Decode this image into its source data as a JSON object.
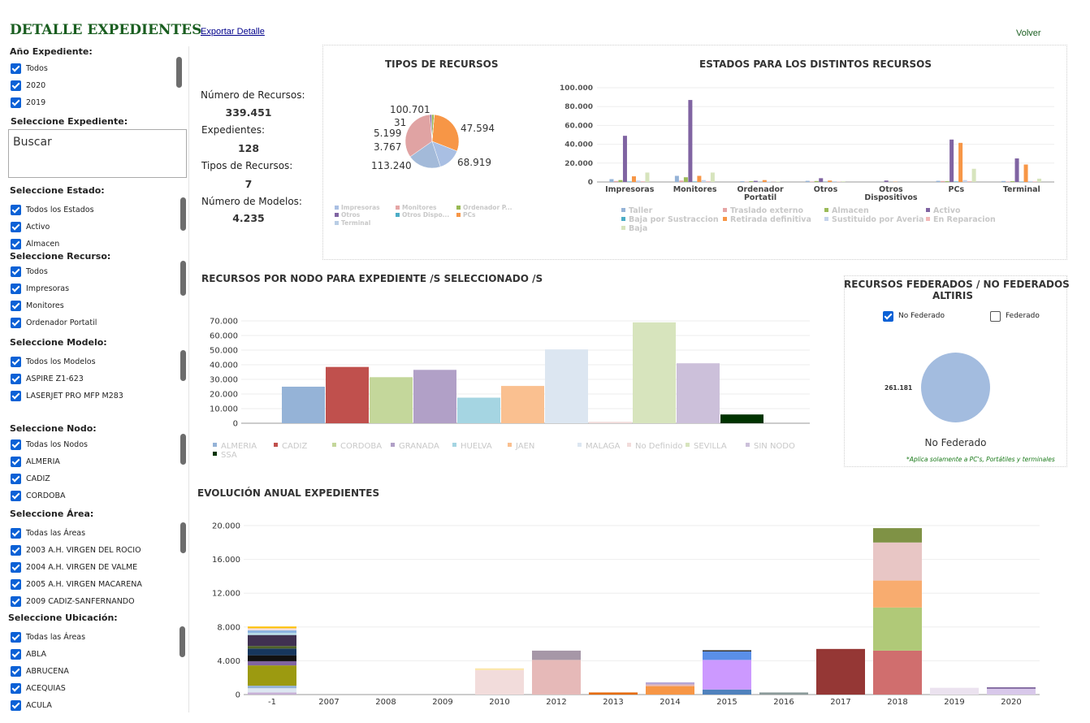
{
  "header": {
    "title": "DETALLE EXPEDIENTES",
    "export_link": "Exportar Detalle",
    "back_link": "Volver"
  },
  "filters": {
    "anio": {
      "label": "Año Expediente:",
      "items": [
        "Todos",
        "2020",
        "2019"
      ]
    },
    "expediente": {
      "label": "Seleccione Expediente:",
      "placeholder": "Buscar"
    },
    "estado": {
      "label": "Seleccione Estado:",
      "items": [
        "Todos los Estados",
        "Activo",
        "Almacen"
      ]
    },
    "recurso": {
      "label": "Seleccione Recurso:",
      "items": [
        "Todos",
        "Impresoras",
        "Monitores",
        "Ordenador Portatil"
      ]
    },
    "modelo": {
      "label": "Seleccione Modelo:",
      "items": [
        "Todos los Modelos",
        "ASPIRE Z1-623",
        "LASERJET PRO MFP M283"
      ]
    },
    "nodo": {
      "label": "Seleccione Nodo:",
      "items": [
        "Todas los Nodos",
        "ALMERIA",
        "CADIZ",
        "CORDOBA"
      ]
    },
    "area": {
      "label": "Seleccione Área:",
      "items": [
        "Todas las Áreas",
        "2003 A.H. VIRGEN DEL ROCIO",
        "2004 A.H. VIRGEN DE VALME",
        "2005 A.H. VIRGEN MACARENA",
        "2009 CADIZ-SANFERNANDO"
      ]
    },
    "ubicacion": {
      "label": "Seleccione Ubicación:",
      "items": [
        "Todas las Áreas",
        "ABLA",
        "ABRUCENA",
        "ACEQUIAS",
        "ACULA"
      ]
    }
  },
  "summary": {
    "recursos_label": "Número de Recursos:",
    "recursos_value": "339.451",
    "expedientes_label": "Expedientes:",
    "expedientes_value": "128",
    "tipos_label": "Tipos de Recursos:",
    "tipos_value": "7",
    "modelos_label": "Número de Modelos:",
    "modelos_value": "4.235"
  },
  "federados": {
    "title_line1": "RECURSOS FEDERADOS / NO FEDERADOS",
    "title_line2": "ALTIRIS",
    "no_federado_label": "No Federado",
    "federado_label": "Federado",
    "pie_value_label": "261.181",
    "pie_label": "No Federado",
    "note": "*Aplica solamente a PC's, Portátiles y terminales",
    "color": "#a3bcdf"
  },
  "chart_data": [
    {
      "type": "pie",
      "title": "TIPOS DE RECURSOS",
      "labels": [
        "PCs",
        "Impresoras",
        "Terminal",
        "Monitores",
        "Otros",
        "Ordenador Portatil",
        "Otros Dispositivos"
      ],
      "values": [
        100701,
        47594,
        68919,
        113240,
        3767,
        5199,
        31
      ],
      "value_labels": [
        "100.701",
        "47.594",
        "68.919",
        "113.240",
        "3.767",
        "5.199",
        "31"
      ],
      "colors": [
        "#f79646",
        "#a9bfe3",
        "#a3bad9",
        "#e0a3a3",
        "#7f5fa6",
        "#98b954",
        "#4bacc6"
      ],
      "legend": [
        "Impresoras",
        "Monitores",
        "Ordenador P...",
        "Otros",
        "Otros Dispo...",
        "PCs",
        "Terminal"
      ],
      "legend_colors": [
        "#a9bfe3",
        "#e5a6a6",
        "#98b954",
        "#8064a2",
        "#4bacc6",
        "#f79646",
        "#b9cde5"
      ],
      "legend_placement": "bottom"
    },
    {
      "type": "bar",
      "title": "ESTADOS PARA LOS DISTINTOS RECURSOS",
      "categories": [
        "Impresoras",
        "Monitores",
        "Ordenador Portatil",
        "Otros",
        "Otros Dispositivos",
        "PCs",
        "Terminal"
      ],
      "category_labels": [
        [
          "Impresoras"
        ],
        [
          "Monitores"
        ],
        [
          "Ordenador",
          "Portatil"
        ],
        [
          "Otros"
        ],
        [
          "Otros",
          "Dispositivos"
        ],
        [
          "PCs"
        ],
        [
          "Terminal"
        ]
      ],
      "ylim": [
        0,
        100000
      ],
      "yticks": [
        "0",
        "20.000",
        "40.000",
        "60.000",
        "80.000",
        "100.000"
      ],
      "series": [
        {
          "name": "Taller",
          "color": "#95b3d7",
          "values": [
            3000,
            6500,
            800,
            1200,
            0,
            1200,
            1000
          ]
        },
        {
          "name": "Traslado externo",
          "color": "#e6a5a5",
          "values": [
            1000,
            1500,
            300,
            500,
            0,
            1000,
            500
          ]
        },
        {
          "name": "Almacen",
          "color": "#9bbb59",
          "values": [
            2000,
            5000,
            800,
            1000,
            0,
            800,
            800
          ]
        },
        {
          "name": "Activo",
          "color": "#8064a2",
          "values": [
            49000,
            87000,
            1200,
            4000,
            1500,
            45000,
            25000
          ]
        },
        {
          "name": "Baja por Sustraccion",
          "color": "#4bacc6",
          "values": [
            500,
            500,
            100,
            200,
            0,
            500,
            300
          ]
        },
        {
          "name": "Retirada definitiva",
          "color": "#f79646",
          "values": [
            6000,
            6500,
            2000,
            1500,
            300,
            41500,
            18500
          ]
        },
        {
          "name": "Sustituido por Averia",
          "color": "#c5d3eb",
          "values": [
            1500,
            2000,
            500,
            800,
            0,
            2000,
            1000
          ]
        },
        {
          "name": "En Reparacion",
          "color": "#f2b8b8",
          "values": [
            800,
            800,
            200,
            400,
            0,
            800,
            600
          ]
        },
        {
          "name": "Baja",
          "color": "#d7e4bd",
          "values": [
            10000,
            10000,
            500,
            700,
            0,
            14000,
            3500
          ]
        }
      ],
      "legend_placement": "bottom"
    },
    {
      "type": "bar",
      "title": "RECURSOS POR NODO PARA EXPEDIENTE /S SELECCIONADO /S",
      "categories": [
        "ALMERIA",
        "CADIZ",
        "CORDOBA",
        "GRANADA",
        "HUELVA",
        "JAEN",
        "MALAGA",
        "No Definido",
        "SEVILLA",
        "SIN NODO",
        "SSA"
      ],
      "values": [
        25000,
        38500,
        31500,
        36500,
        17500,
        25500,
        50500,
        1000,
        69000,
        41000,
        6000
      ],
      "colors": [
        "#95b3d7",
        "#c0504d",
        "#c4d79b",
        "#b1a0c7",
        "#a5d5e2",
        "#fac090",
        "#dce6f1",
        "#f2dcdb",
        "#d7e4bd",
        "#ccc0da",
        "#003300"
      ],
      "ylim": [
        0,
        70000
      ],
      "yticks": [
        "0",
        "10.000",
        "20.000",
        "30.000",
        "40.000",
        "50.000",
        "60.000",
        "70.000"
      ],
      "legend_placement": "bottom"
    },
    {
      "type": "bar",
      "stacked": true,
      "title": "EVOLUCIÓN ANUAL EXPEDIENTES",
      "categories": [
        "-1",
        "2007",
        "2008",
        "2009",
        "2010",
        "2012",
        "2013",
        "2014",
        "2015",
        "2016",
        "2017",
        "2018",
        "2019",
        "2020"
      ],
      "ylim": [
        0,
        20000
      ],
      "yticks": [
        "0",
        "4.000",
        "8.000",
        "12.000",
        "16.000",
        "20.000"
      ],
      "stacks": [
        [
          {
            "v": 250,
            "c": "#c7b0d5"
          },
          {
            "v": 500,
            "c": "#dce6f1"
          },
          {
            "v": 300,
            "c": "#95b3d7"
          },
          {
            "v": 2400,
            "c": "#9c9a10"
          },
          {
            "v": 500,
            "c": "#8064a2"
          },
          {
            "v": 700,
            "c": "#111111"
          },
          {
            "v": 800,
            "c": "#17375e"
          },
          {
            "v": 300,
            "c": "#4f6228"
          },
          {
            "v": 1300,
            "c": "#403151"
          },
          {
            "v": 250,
            "c": "#b7dee8"
          },
          {
            "v": 300,
            "c": "#8db4e2"
          },
          {
            "v": 250,
            "c": "#f2dcdb"
          },
          {
            "v": 200,
            "c": "#ffc000"
          }
        ],
        [],
        [],
        [],
        [
          {
            "v": 2900,
            "c": "#f2dcdb"
          },
          {
            "v": 200,
            "c": "#fbe5a6"
          }
        ],
        [
          {
            "v": 4100,
            "c": "#e6b9b8"
          },
          {
            "v": 1100,
            "c": "#a697a7"
          }
        ],
        [
          {
            "v": 250,
            "c": "#e46c0a"
          }
        ],
        [
          {
            "v": 1000,
            "c": "#f79646"
          },
          {
            "v": 200,
            "c": "#e6b9b8"
          },
          {
            "v": 250,
            "c": "#b4a7d6"
          }
        ],
        [
          {
            "v": 600,
            "c": "#4f81bd"
          },
          {
            "v": 3500,
            "c": "#cc99ff"
          },
          {
            "v": 1000,
            "c": "#5a8fe8"
          },
          {
            "v": 150,
            "c": "#333333"
          }
        ],
        [
          {
            "v": 250,
            "c": "#8a9a99"
          }
        ],
        [
          {
            "v": 5400,
            "c": "#953735"
          }
        ],
        [
          {
            "v": 5200,
            "c": "#d06e6e"
          },
          {
            "v": 5100,
            "c": "#b0c978"
          },
          {
            "v": 3200,
            "c": "#f8ac6f"
          },
          {
            "v": 4500,
            "c": "#e8c6c5"
          },
          {
            "v": 1700,
            "c": "#7f9245"
          }
        ],
        [
          {
            "v": 800,
            "c": "#ebe2ef"
          }
        ],
        [
          {
            "v": 700,
            "c": "#d8c8ea"
          },
          {
            "v": 150,
            "c": "#6b4e8e"
          }
        ]
      ]
    }
  ]
}
